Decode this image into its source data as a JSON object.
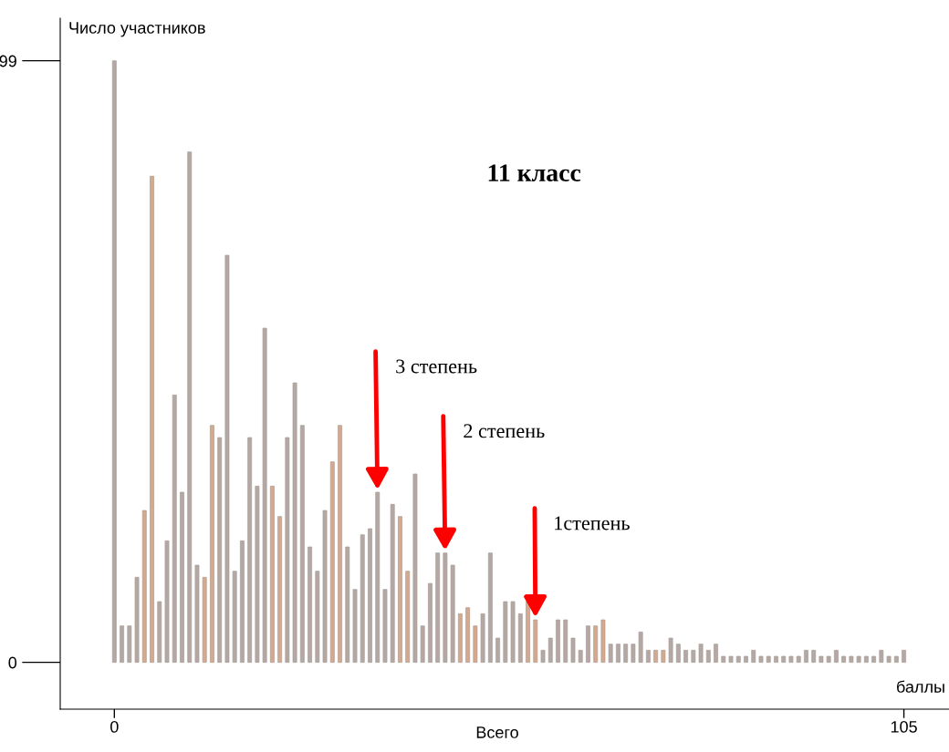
{
  "chart_data": {
    "type": "bar",
    "title": "11 класс",
    "xlabel": "баллы",
    "ylabel": "Число участников",
    "x": [
      0,
      1,
      2,
      3,
      4,
      5,
      6,
      7,
      8,
      9,
      10,
      11,
      12,
      13,
      14,
      15,
      16,
      17,
      18,
      19,
      20,
      21,
      22,
      23,
      24,
      25,
      26,
      27,
      28,
      29,
      30,
      31,
      32,
      33,
      34,
      35,
      36,
      37,
      38,
      39,
      40,
      41,
      42,
      43,
      44,
      45,
      46,
      47,
      48,
      49,
      50,
      51,
      52,
      53,
      54,
      55,
      56,
      57,
      58,
      59,
      60,
      61,
      62,
      63,
      64,
      65,
      66,
      67,
      68,
      69,
      70,
      71,
      72,
      73,
      74,
      75,
      76,
      77,
      78,
      79,
      80,
      81,
      82,
      83,
      84,
      85,
      86,
      87,
      88,
      89,
      90,
      91,
      92,
      93,
      94,
      95,
      96,
      97,
      98,
      99,
      100,
      101,
      102,
      103,
      104,
      105
    ],
    "values": [
      99,
      6,
      6,
      14,
      25,
      80,
      10,
      20,
      44,
      28,
      84,
      16,
      14,
      39,
      37,
      67,
      15,
      20,
      37,
      29,
      55,
      29,
      24,
      37,
      46,
      39,
      19,
      15,
      25,
      33,
      39,
      19,
      12,
      21,
      22,
      28,
      12,
      26,
      24,
      15,
      31,
      6,
      13,
      18,
      18,
      16,
      8,
      9,
      6,
      8,
      18,
      4,
      10,
      10,
      8,
      10,
      7,
      2,
      4,
      7,
      7,
      4,
      2,
      6,
      6,
      7,
      3,
      3,
      3,
      3,
      5,
      2,
      2,
      2,
      4,
      3,
      2,
      2,
      3,
      2,
      3,
      1,
      1,
      1,
      1,
      2,
      1,
      1,
      1,
      1,
      1,
      1,
      2,
      2,
      1,
      1,
      2,
      1,
      1,
      1,
      1,
      1,
      2,
      1,
      1,
      2
    ],
    "colors": [
      "#b4a8a4",
      "#b4a8a4",
      "#b4a8a4",
      "#b4a8a4",
      "#d8a888",
      "#d8a888",
      "#b4a8a4",
      "#b4a8a4",
      "#b4a8a4",
      "#b4a8a4",
      "#b4a8a4",
      "#b4a8a4",
      "#d8a888",
      "#d8a888",
      "#b4a8a4",
      "#b4a8a4",
      "#b4a8a4",
      "#b4a8a4",
      "#b4a8a4",
      "#b4a8a4",
      "#b4a8a4",
      "#d8a888",
      "#d8a888",
      "#b4a8a4",
      "#b4a8a4",
      "#b4a8a4",
      "#b4a8a4",
      "#b4a8a4",
      "#b4a8a4",
      "#d8a888",
      "#d8a888",
      "#b4a8a4",
      "#b4a8a4",
      "#b4a8a4",
      "#b4a8a4",
      "#b4a8a4",
      "#b4a8a4",
      "#b4a8a4",
      "#d8a888",
      "#d8a888",
      "#b4a8a4",
      "#b4a8a4",
      "#b4a8a4",
      "#b4a8a4",
      "#b4a8a4",
      "#b4a8a4",
      "#d8a888",
      "#d8a888",
      "#d8a888",
      "#b4a8a4",
      "#b4a8a4",
      "#b4a8a4",
      "#b4a8a4",
      "#b4a8a4",
      "#b4a8a4",
      "#d8a888",
      "#d8a888",
      "#b4a8a4",
      "#b4a8a4",
      "#b4a8a4",
      "#b4a8a4",
      "#b4a8a4",
      "#b4a8a4",
      "#b4a8a4",
      "#d8a888",
      "#d8a888",
      "#b4a8a4",
      "#b4a8a4",
      "#b4a8a4",
      "#b4a8a4",
      "#b4a8a4",
      "#b4a8a4",
      "#d8a888",
      "#d8a888",
      "#b4a8a4",
      "#b4a8a4",
      "#b4a8a4",
      "#b4a8a4",
      "#b4a8a4",
      "#b4a8a4",
      "#b4a8a4",
      "#b4a8a4",
      "#b4a8a4",
      "#b4a8a4",
      "#b4a8a4",
      "#b4a8a4",
      "#b4a8a4",
      "#b4a8a4",
      "#b4a8a4",
      "#b4a8a4",
      "#b4a8a4",
      "#b4a8a4",
      "#b4a8a4",
      "#b4a8a4",
      "#b4a8a4",
      "#b4a8a4",
      "#b4a8a4",
      "#b4a8a4",
      "#b4a8a4",
      "#b4a8a4",
      "#b4a8a4",
      "#b4a8a4",
      "#b4a8a4",
      "#b4a8a4",
      "#b4a8a4",
      "#b4a8a4"
    ],
    "xlim": [
      -7.2,
      111
    ],
    "ylim": [
      -7.7,
      106
    ],
    "xticks": [
      0,
      105
    ],
    "yticks": [
      0,
      99
    ],
    "grid": false,
    "annotations": [
      {
        "text": "3 степень",
        "x": 35,
        "y": 28
      },
      {
        "text": "2 степень",
        "x": 44,
        "y": 18
      },
      {
        "text": "1степень",
        "x": 56,
        "y": 7
      },
      "Всего"
    ]
  }
}
